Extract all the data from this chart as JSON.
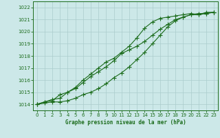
{
  "title": "Graphe pression niveau de la mer (hPa)",
  "bg_color": "#cce8e8",
  "line_color": "#1a6b1a",
  "grid_color": "#aacccc",
  "ylim": [
    1013.5,
    1022.5
  ],
  "xlim": [
    -0.5,
    23.5
  ],
  "yticks": [
    1014,
    1015,
    1016,
    1017,
    1018,
    1019,
    1020,
    1021,
    1022
  ],
  "xticks": [
    0,
    1,
    2,
    3,
    4,
    5,
    6,
    7,
    8,
    9,
    10,
    11,
    12,
    13,
    14,
    15,
    16,
    17,
    18,
    19,
    20,
    21,
    22,
    23
  ],
  "line1_x": [
    0,
    1,
    2,
    3,
    4,
    5,
    6,
    7,
    8,
    9,
    10,
    11,
    12,
    13,
    14,
    15,
    16,
    17,
    18,
    19,
    20,
    21,
    22,
    23
  ],
  "line1_y": [
    1014.0,
    1014.1,
    1014.2,
    1014.2,
    1014.3,
    1014.5,
    1014.8,
    1015.0,
    1015.3,
    1015.7,
    1016.2,
    1016.6,
    1017.1,
    1017.7,
    1018.3,
    1019.0,
    1019.7,
    1020.4,
    1020.9,
    1021.2,
    1021.4,
    1021.5,
    1021.5,
    1021.6
  ],
  "line2_x": [
    0,
    1,
    2,
    3,
    4,
    5,
    6,
    7,
    8,
    9,
    10,
    11,
    12,
    13,
    14,
    15,
    16,
    17,
    18,
    19,
    20,
    21,
    22,
    23
  ],
  "line2_y": [
    1014.0,
    1014.2,
    1014.4,
    1014.5,
    1015.0,
    1015.3,
    1015.8,
    1016.3,
    1016.7,
    1017.1,
    1017.6,
    1018.2,
    1018.5,
    1018.8,
    1019.2,
    1019.7,
    1020.2,
    1020.6,
    1021.0,
    1021.2,
    1021.4,
    1021.4,
    1021.5,
    1021.6
  ],
  "line3_x": [
    0,
    1,
    2,
    3,
    4,
    5,
    6,
    7,
    8,
    9,
    10,
    11,
    12,
    13,
    14,
    15,
    16,
    17,
    18,
    19,
    20,
    21,
    22,
    23
  ],
  "line3_y": [
    1014.0,
    1014.2,
    1014.3,
    1014.8,
    1015.0,
    1015.4,
    1016.0,
    1016.5,
    1017.0,
    1017.5,
    1017.8,
    1018.3,
    1018.8,
    1019.5,
    1020.3,
    1020.8,
    1021.1,
    1021.2,
    1021.3,
    1021.4,
    1021.5,
    1021.4,
    1021.6,
    1021.6
  ]
}
